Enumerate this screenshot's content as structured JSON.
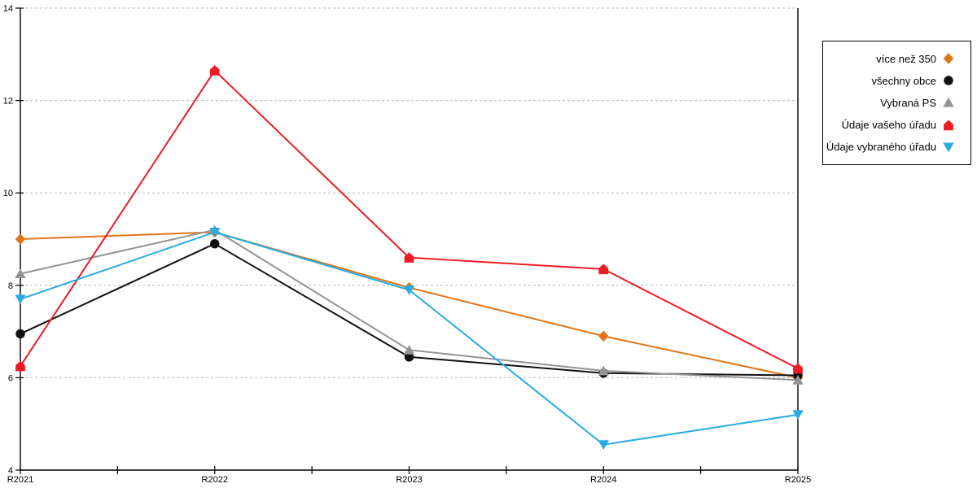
{
  "chart_data": {
    "type": "line",
    "title": "",
    "xlabel": "",
    "ylabel": "",
    "x_categories": [
      "R2021",
      "R2022",
      "R2023",
      "R2024",
      "R2025"
    ],
    "ylim": [
      4,
      14
    ],
    "y_ticks": [
      4,
      6,
      8,
      10,
      12,
      14
    ],
    "grid": "horizontal dashed gridlines at y ticks above axis",
    "legend_position": "top-right outside plot, bordered box, markers right of labels",
    "axis_color": "#000000",
    "gridline_color": "#b8b8b8",
    "series": [
      {
        "name": "více než 350",
        "color": "#E0751B",
        "marker": "diamond",
        "values": [
          9.0,
          9.15,
          7.95,
          6.9,
          6.0
        ]
      },
      {
        "name": "všechny obce",
        "color": "#111111",
        "marker": "circle",
        "values": [
          6.95,
          8.9,
          6.45,
          6.1,
          6.05
        ]
      },
      {
        "name": "Vybraná PS",
        "color": "#949494",
        "marker": "triangle-up",
        "values": [
          8.25,
          9.2,
          6.6,
          6.15,
          5.95
        ]
      },
      {
        "name": "Údaje vašeho úřadu",
        "color": "#ED1C24",
        "marker": "pentagon",
        "values": [
          6.25,
          12.65,
          8.6,
          8.35,
          6.2
        ]
      },
      {
        "name": "Údaje vybraného úřadu",
        "color": "#29ABE2",
        "marker": "triangle-down",
        "values": [
          7.7,
          9.15,
          7.9,
          4.55,
          5.2
        ]
      }
    ]
  }
}
